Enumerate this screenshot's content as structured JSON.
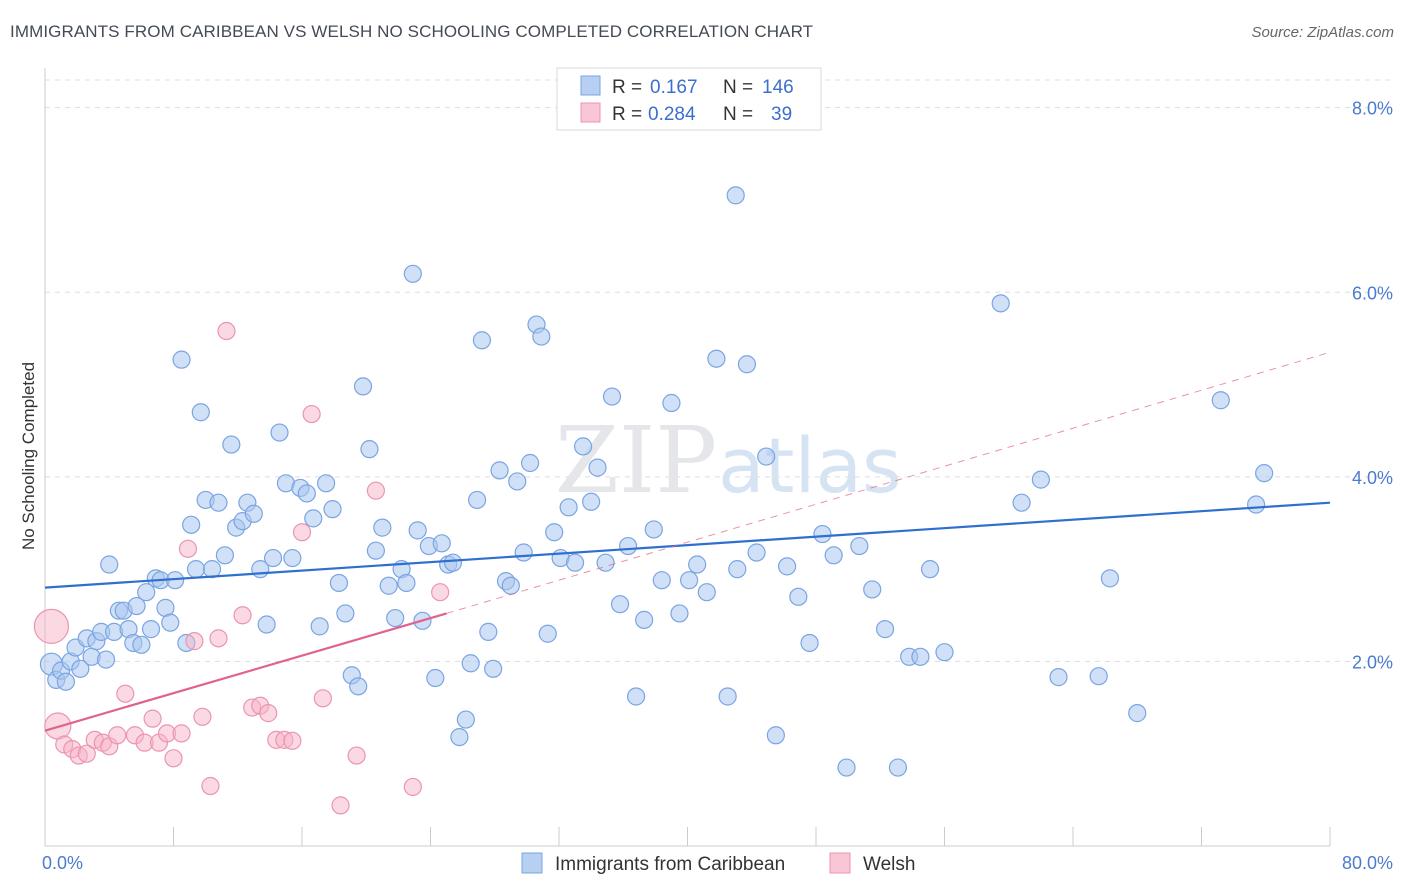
{
  "title": "IMMIGRANTS FROM CARIBBEAN VS WELSH NO SCHOOLING COMPLETED CORRELATION CHART",
  "source": "Source: ZipAtlas.com",
  "watermark": {
    "zip": "ZIP",
    "atlas": "atlas"
  },
  "colors": {
    "blue": "#a9c6ef",
    "blue_line": "#2f6fd0",
    "pink": "#f5b3c6",
    "pink_line": "#e0628f"
  },
  "legend_top": {
    "rows": [
      {
        "r_label": "R =",
        "r_value": "0.167",
        "n_label": "N =",
        "n_value": "146"
      },
      {
        "r_label": "R =",
        "r_value": "0.284",
        "n_label": "N =",
        "n_value": "39"
      }
    ]
  },
  "legend_bottom": {
    "items": [
      "Immigrants from Caribbean",
      "Welsh"
    ]
  },
  "chart_data": {
    "type": "scatter",
    "title": "IMMIGRANTS FROM CARIBBEAN VS WELSH NO SCHOOLING COMPLETED CORRELATION CHART",
    "xlabel": "",
    "ylabel": "No Schooling Completed",
    "xlim": [
      0,
      80
    ],
    "ylim": [
      0,
      8.3
    ],
    "x_ticks": [
      "0.0%",
      "80.0%"
    ],
    "y_ticks": [
      {
        "value": 2,
        "label": "2.0%"
      },
      {
        "value": 4,
        "label": "4.0%"
      },
      {
        "value": 6,
        "label": "6.0%"
      },
      {
        "value": 8,
        "label": "8.0%"
      }
    ],
    "grid": "horizontal dashed",
    "legend": "top-center",
    "series": [
      {
        "name": "Immigrants from Caribbean",
        "R": 0.167,
        "N": 146,
        "trend": {
          "x": [
            0,
            80
          ],
          "y": [
            2.8,
            3.72
          ],
          "style": "solid"
        },
        "points": [
          [
            0.4,
            1.97
          ],
          [
            0.7,
            1.8
          ],
          [
            1.0,
            1.9
          ],
          [
            1.3,
            1.78
          ],
          [
            1.6,
            2.0
          ],
          [
            1.9,
            2.15
          ],
          [
            2.2,
            1.92
          ],
          [
            2.6,
            2.25
          ],
          [
            2.9,
            2.05
          ],
          [
            3.2,
            2.22
          ],
          [
            3.5,
            2.32
          ],
          [
            3.8,
            2.02
          ],
          [
            4.0,
            3.05
          ],
          [
            4.3,
            2.32
          ],
          [
            4.6,
            2.55
          ],
          [
            4.9,
            2.55
          ],
          [
            5.2,
            2.35
          ],
          [
            5.5,
            2.2
          ],
          [
            5.7,
            2.6
          ],
          [
            6.0,
            2.18
          ],
          [
            6.3,
            2.75
          ],
          [
            6.6,
            2.35
          ],
          [
            6.9,
            2.9
          ],
          [
            7.2,
            2.88
          ],
          [
            7.5,
            2.58
          ],
          [
            7.8,
            2.42
          ],
          [
            8.1,
            2.88
          ],
          [
            8.5,
            5.27
          ],
          [
            8.8,
            2.2
          ],
          [
            9.1,
            3.48
          ],
          [
            9.4,
            3.0
          ],
          [
            9.7,
            4.7
          ],
          [
            10.0,
            3.75
          ],
          [
            10.4,
            3.0
          ],
          [
            10.8,
            3.72
          ],
          [
            11.2,
            3.15
          ],
          [
            11.6,
            4.35
          ],
          [
            11.9,
            3.45
          ],
          [
            12.3,
            3.52
          ],
          [
            12.6,
            3.72
          ],
          [
            13.0,
            3.6
          ],
          [
            13.4,
            3.0
          ],
          [
            13.8,
            2.4
          ],
          [
            14.2,
            3.12
          ],
          [
            14.6,
            4.48
          ],
          [
            15.0,
            3.93
          ],
          [
            15.4,
            3.12
          ],
          [
            15.9,
            3.88
          ],
          [
            16.3,
            3.82
          ],
          [
            16.7,
            3.55
          ],
          [
            17.1,
            2.38
          ],
          [
            17.5,
            3.93
          ],
          [
            17.9,
            3.65
          ],
          [
            18.3,
            2.85
          ],
          [
            18.7,
            2.52
          ],
          [
            19.1,
            1.85
          ],
          [
            19.5,
            1.73
          ],
          [
            19.8,
            4.98
          ],
          [
            20.2,
            4.3
          ],
          [
            20.6,
            3.2
          ],
          [
            21.0,
            3.45
          ],
          [
            21.4,
            2.82
          ],
          [
            21.8,
            2.47
          ],
          [
            22.2,
            3.0
          ],
          [
            22.5,
            2.85
          ],
          [
            22.9,
            6.2
          ],
          [
            23.2,
            3.42
          ],
          [
            23.5,
            2.44
          ],
          [
            23.9,
            3.25
          ],
          [
            24.3,
            1.82
          ],
          [
            24.7,
            3.28
          ],
          [
            25.1,
            3.05
          ],
          [
            25.4,
            3.07
          ],
          [
            25.8,
            1.18
          ],
          [
            26.2,
            1.37
          ],
          [
            26.5,
            1.98
          ],
          [
            26.9,
            3.75
          ],
          [
            27.2,
            5.48
          ],
          [
            27.6,
            2.32
          ],
          [
            27.9,
            1.92
          ],
          [
            28.3,
            4.07
          ],
          [
            28.7,
            2.87
          ],
          [
            29.0,
            2.82
          ],
          [
            29.4,
            3.95
          ],
          [
            29.8,
            3.18
          ],
          [
            30.2,
            4.15
          ],
          [
            30.6,
            5.65
          ],
          [
            30.9,
            5.52
          ],
          [
            31.3,
            2.3
          ],
          [
            31.7,
            3.4
          ],
          [
            32.1,
            3.12
          ],
          [
            32.6,
            3.67
          ],
          [
            33.0,
            3.07
          ],
          [
            33.5,
            4.33
          ],
          [
            34.0,
            3.73
          ],
          [
            34.4,
            4.1
          ],
          [
            34.9,
            3.07
          ],
          [
            35.3,
            4.87
          ],
          [
            35.8,
            2.62
          ],
          [
            36.3,
            3.25
          ],
          [
            36.8,
            1.62
          ],
          [
            37.3,
            2.45
          ],
          [
            37.9,
            3.43
          ],
          [
            38.4,
            2.88
          ],
          [
            39.0,
            4.8
          ],
          [
            39.5,
            2.52
          ],
          [
            40.1,
            2.88
          ],
          [
            40.6,
            3.05
          ],
          [
            41.2,
            2.75
          ],
          [
            41.8,
            5.28
          ],
          [
            42.5,
            1.62
          ],
          [
            43.1,
            3.0
          ],
          [
            43.7,
            5.22
          ],
          [
            44.3,
            3.18
          ],
          [
            44.9,
            4.22
          ],
          [
            45.5,
            1.2
          ],
          [
            46.2,
            3.03
          ],
          [
            46.9,
            2.7
          ],
          [
            47.6,
            2.2
          ],
          [
            48.4,
            3.38
          ],
          [
            49.1,
            3.15
          ],
          [
            49.9,
            0.85
          ],
          [
            50.7,
            3.25
          ],
          [
            51.5,
            2.78
          ],
          [
            52.3,
            2.35
          ],
          [
            53.1,
            0.85
          ],
          [
            53.8,
            2.05
          ],
          [
            54.5,
            2.05
          ],
          [
            55.1,
            3.0
          ],
          [
            56.0,
            2.1
          ],
          [
            59.5,
            5.88
          ],
          [
            60.8,
            3.72
          ],
          [
            62.0,
            3.97
          ],
          [
            63.1,
            1.83
          ],
          [
            65.6,
            1.84
          ],
          [
            66.3,
            2.9
          ],
          [
            68.0,
            1.44
          ],
          [
            73.2,
            4.83
          ],
          [
            75.4,
            3.7
          ],
          [
            75.9,
            4.04
          ],
          [
            43.0,
            7.05
          ]
        ]
      },
      {
        "name": "Welsh",
        "R": 0.284,
        "N": 39,
        "trend": {
          "x": [
            0,
            25
          ],
          "y": [
            1.25,
            2.52
          ],
          "style": "solid",
          "extension": {
            "x": [
              25,
              80
            ],
            "y": [
              2.52,
              5.35
            ],
            "style": "dashed"
          }
        },
        "points": [
          [
            0.4,
            2.38
          ],
          [
            0.8,
            1.3
          ],
          [
            1.2,
            1.1
          ],
          [
            1.7,
            1.05
          ],
          [
            2.1,
            0.98
          ],
          [
            2.6,
            1.0
          ],
          [
            3.1,
            1.15
          ],
          [
            3.6,
            1.12
          ],
          [
            4.0,
            1.08
          ],
          [
            4.5,
            1.2
          ],
          [
            5.0,
            1.65
          ],
          [
            5.6,
            1.2
          ],
          [
            6.2,
            1.12
          ],
          [
            6.7,
            1.38
          ],
          [
            7.1,
            1.12
          ],
          [
            7.6,
            1.22
          ],
          [
            8.0,
            0.95
          ],
          [
            8.5,
            1.22
          ],
          [
            8.9,
            3.22
          ],
          [
            9.3,
            2.22
          ],
          [
            9.8,
            1.4
          ],
          [
            10.3,
            0.65
          ],
          [
            10.8,
            2.25
          ],
          [
            11.3,
            5.58
          ],
          [
            12.3,
            2.5
          ],
          [
            12.9,
            1.5
          ],
          [
            13.4,
            1.52
          ],
          [
            13.9,
            1.44
          ],
          [
            14.4,
            1.15
          ],
          [
            14.9,
            1.15
          ],
          [
            15.4,
            1.14
          ],
          [
            16.0,
            3.4
          ],
          [
            16.6,
            4.68
          ],
          [
            17.3,
            1.6
          ],
          [
            18.4,
            0.44
          ],
          [
            19.4,
            0.98
          ],
          [
            20.6,
            3.85
          ],
          [
            22.9,
            0.64
          ],
          [
            24.6,
            2.75
          ]
        ]
      }
    ]
  }
}
